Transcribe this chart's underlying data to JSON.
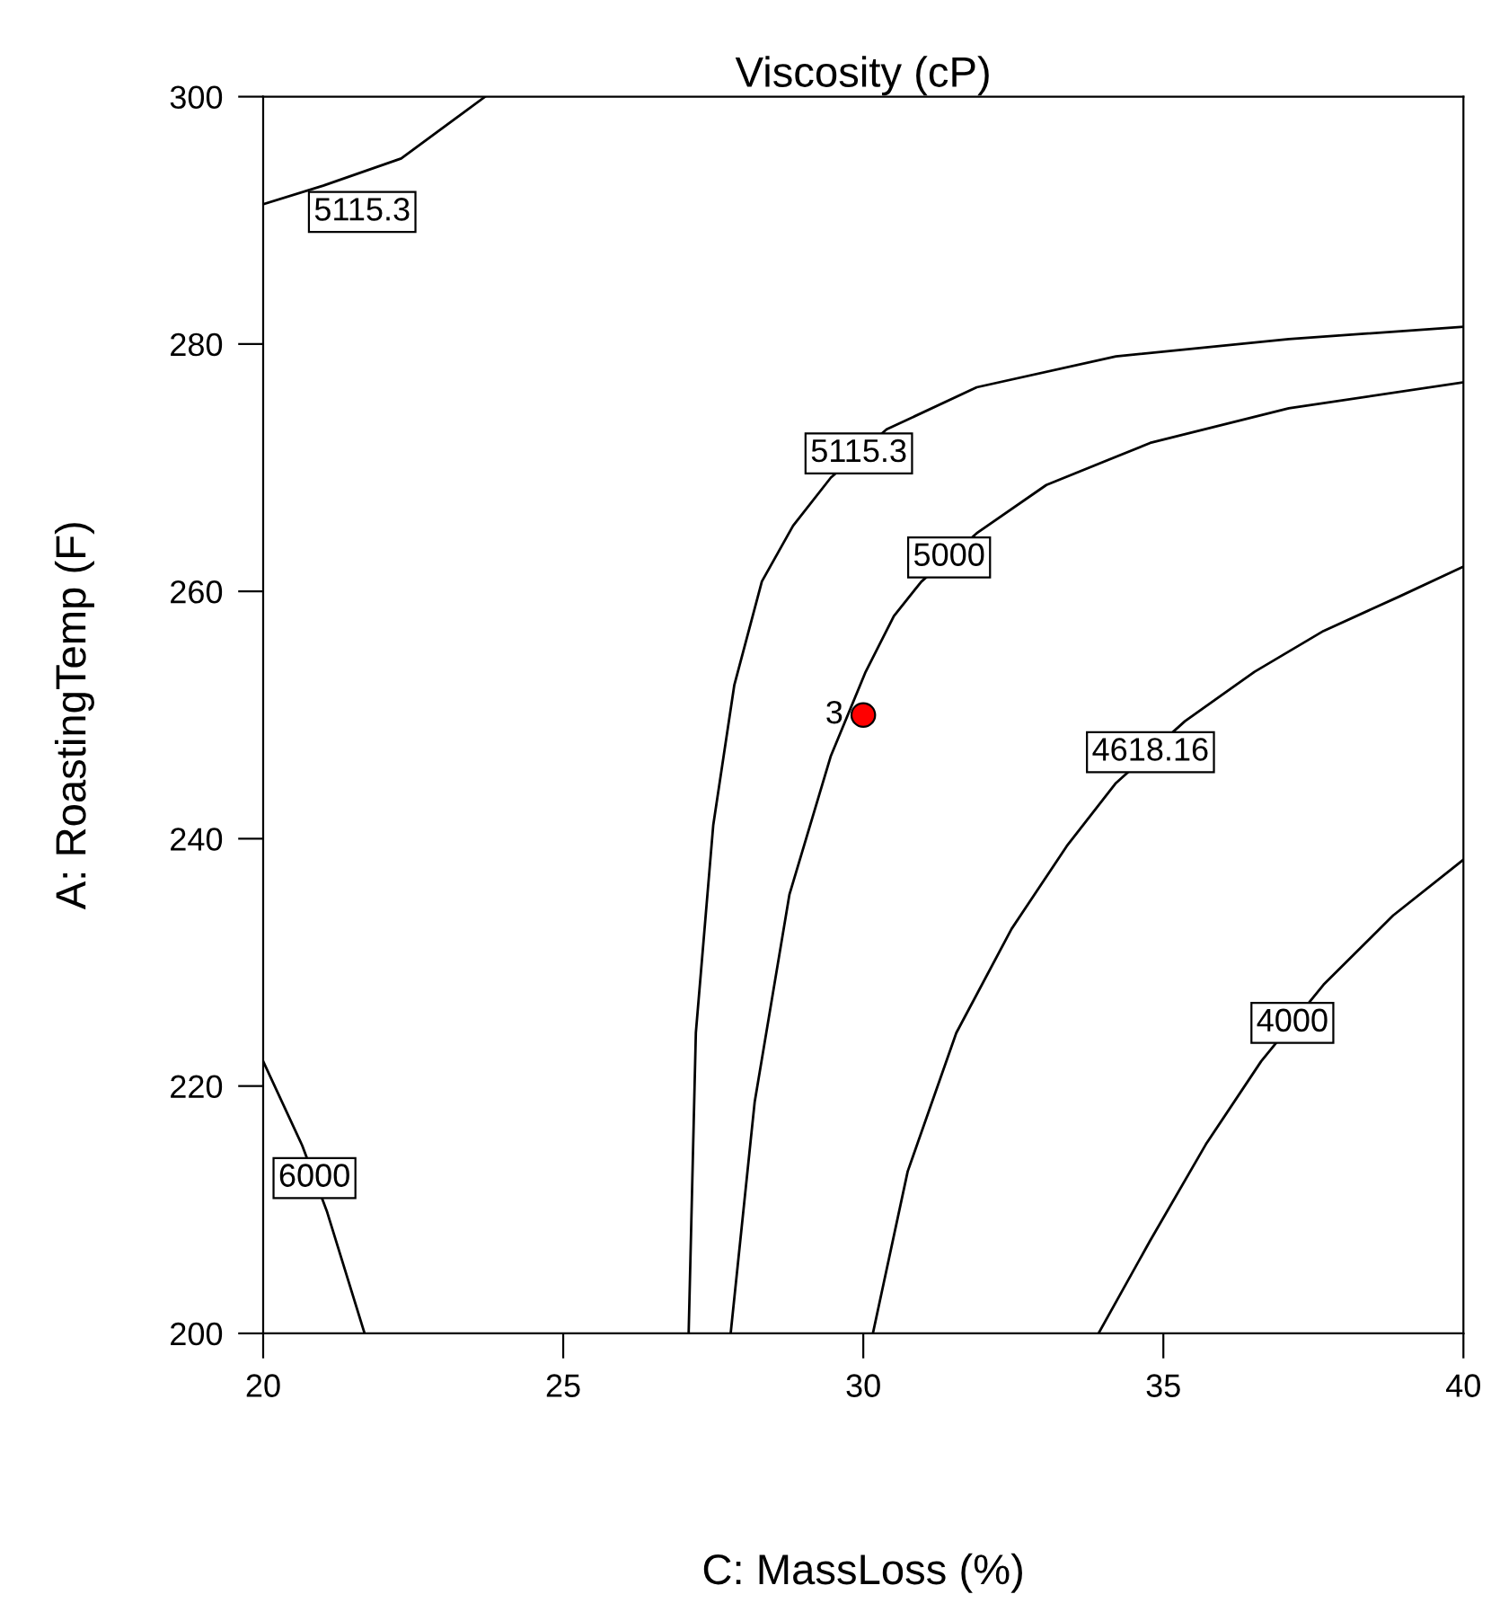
{
  "chart_data": {
    "type": "line",
    "title": "Viscosity (cP)",
    "xlabel": "C: MassLoss (%)",
    "ylabel": "A: RoastingTemp (F)",
    "xlim": [
      20,
      40
    ],
    "xticks": [
      20,
      25,
      30,
      35,
      40
    ],
    "ylim": [
      200,
      300
    ],
    "yticks": [
      200,
      220,
      240,
      260,
      280,
      300
    ],
    "grid": false,
    "legend": false,
    "line_style": "solid",
    "series": [
      {
        "name": "5115.3",
        "color": "#000000",
        "x": [
          20,
          21,
          22.3,
          23.7
        ],
        "values": [
          291.3,
          292.8,
          295.0,
          300
        ]
      },
      {
        "name": "6000",
        "color": "#000000",
        "x": [
          20,
          20.65,
          21.06,
          21.69
        ],
        "values": [
          222.0,
          215.2,
          209.9,
          200
        ]
      },
      {
        "name": "5115.3",
        "color": "#000000",
        "x": [
          27.09,
          27.21,
          27.5,
          27.85,
          28.31,
          28.83,
          29.46,
          30.39,
          31.89,
          34.21,
          37.09,
          40
        ],
        "values": [
          200,
          224.3,
          241.1,
          252.4,
          260.8,
          265.3,
          269.2,
          273.1,
          276.5,
          279.0,
          280.4,
          281.4
        ]
      },
      {
        "name": "5000",
        "color": "#000000",
        "x": [
          27.79,
          28.19,
          28.77,
          29.46,
          30.04,
          30.51,
          30.97,
          31.89,
          33.05,
          34.78,
          37.09,
          40
        ],
        "values": [
          200,
          218.7,
          235.5,
          246.7,
          253.5,
          258.0,
          260.8,
          264.7,
          268.6,
          272.0,
          274.8,
          276.9
        ]
      },
      {
        "name": "4618.16",
        "color": "#000000",
        "x": [
          30.16,
          30.74,
          31.55,
          32.47,
          33.39,
          34.21,
          35.36,
          36.52,
          37.67,
          38.94,
          40
        ],
        "values": [
          200,
          213.1,
          224.3,
          232.7,
          239.4,
          244.5,
          249.5,
          253.5,
          256.8,
          259.6,
          262.0
        ]
      },
      {
        "name": "4000",
        "color": "#000000",
        "x": [
          33.92,
          34.78,
          35.71,
          36.63,
          37.67,
          38.83,
          40
        ],
        "values": [
          200,
          207.5,
          215.3,
          222.0,
          228.2,
          233.8,
          238.3
        ]
      },
      {
        "type": "scatter",
        "color": "#ff0000",
        "marker": "circle",
        "x": [
          30
        ],
        "values": [
          250
        ]
      }
    ],
    "annotations": [
      {
        "text": "3",
        "x": 30,
        "y": 250
      }
    ]
  }
}
